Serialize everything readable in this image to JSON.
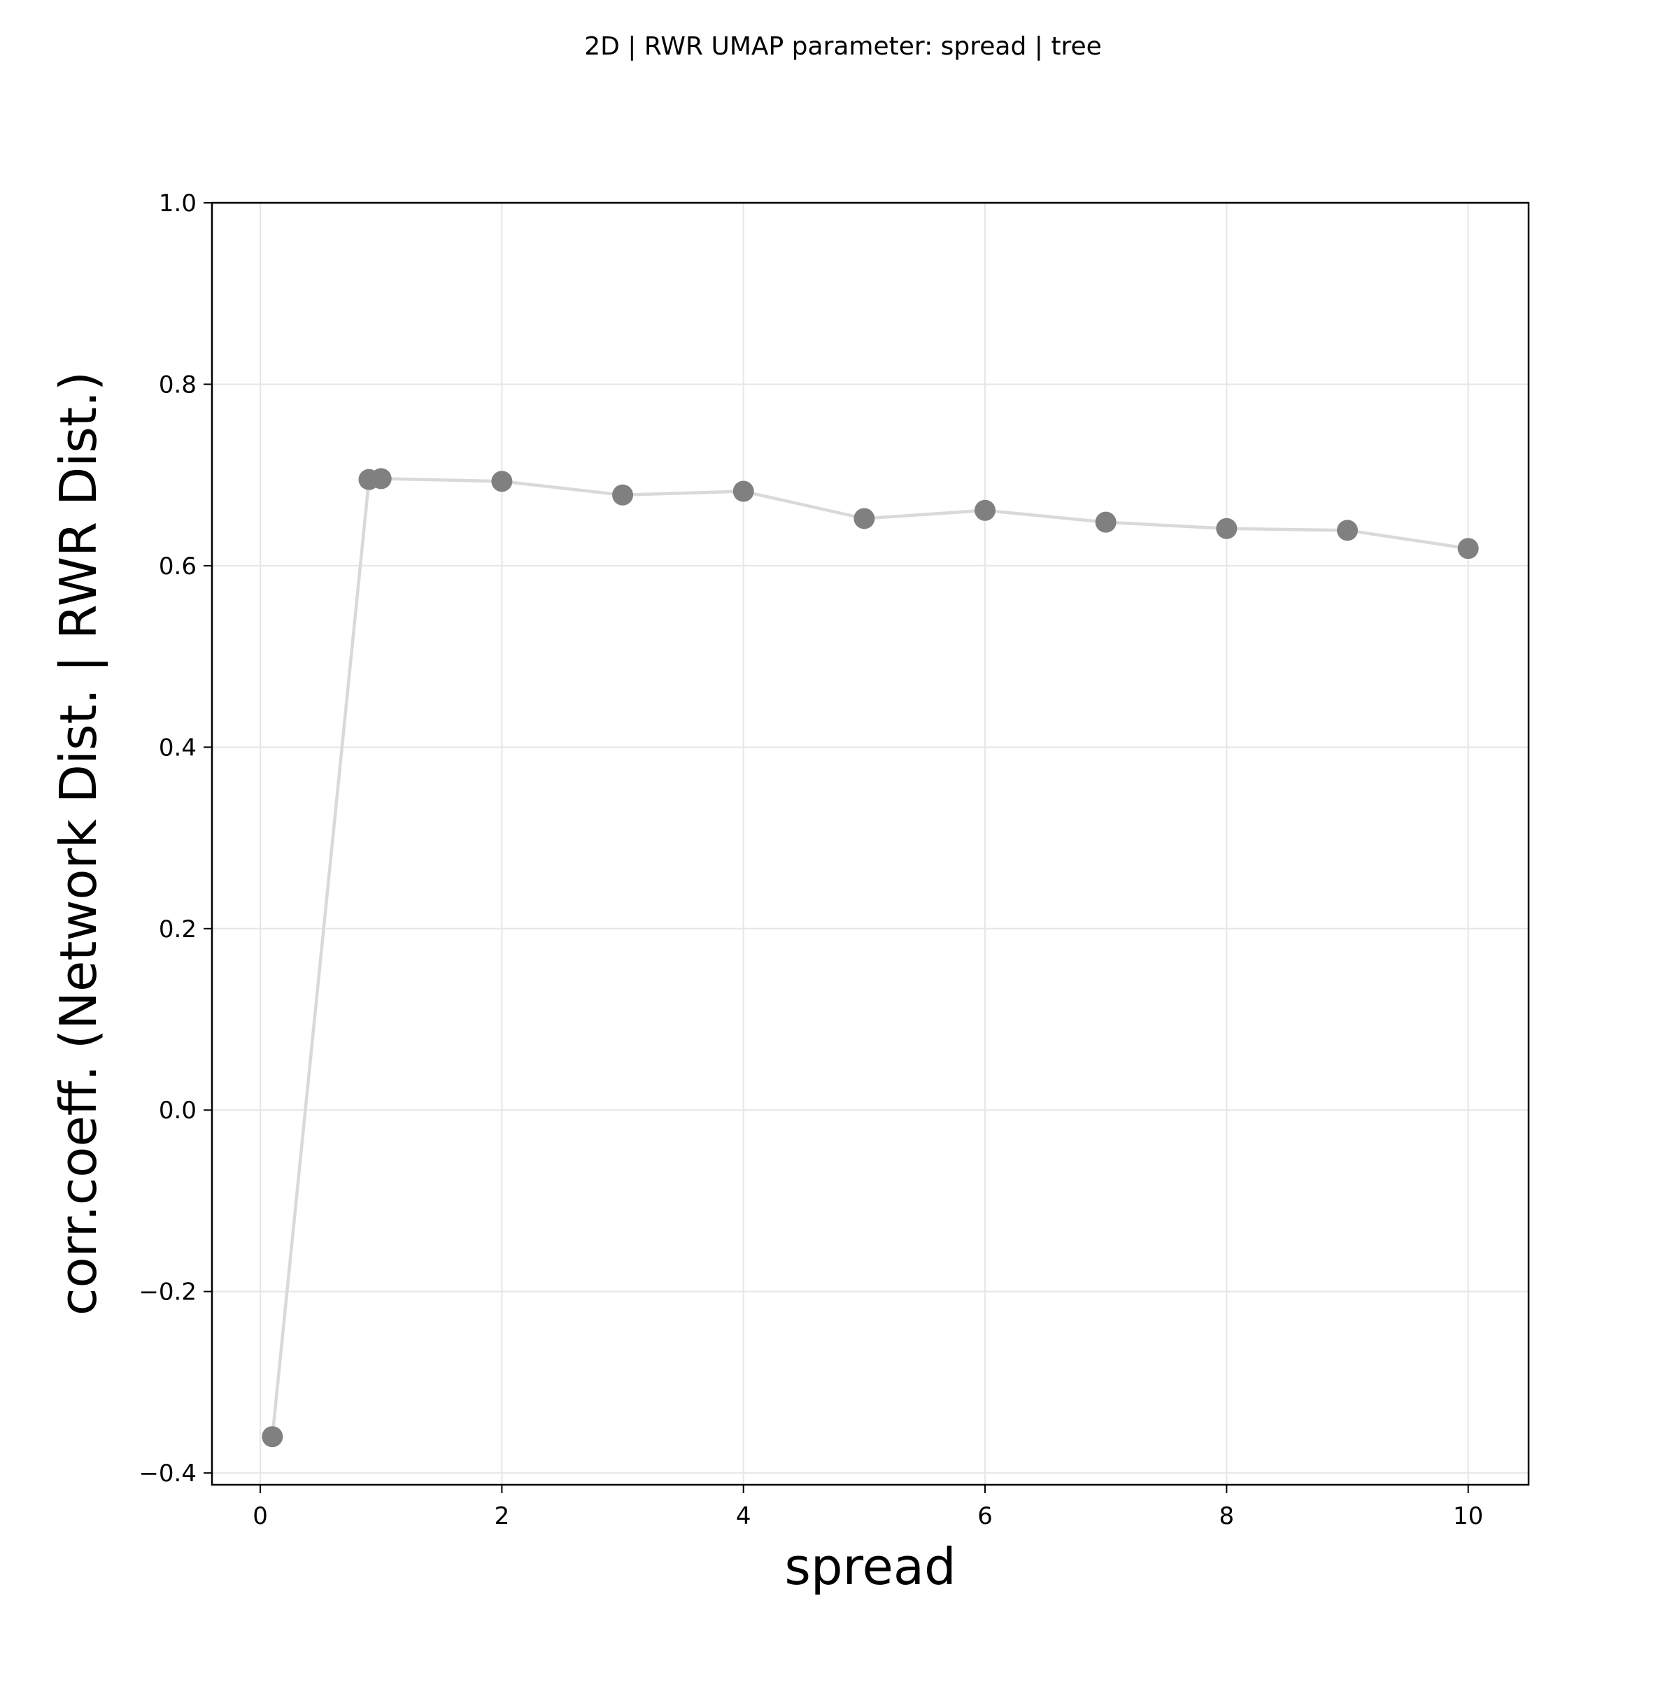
{
  "chart_data": {
    "type": "line",
    "title": "2D | RWR UMAP parameter: spread | tree",
    "xlabel": "spread",
    "ylabel": "corr.coeff. (Network Dist. | RWR Dist.)",
    "xlim": [
      -0.4,
      10.5
    ],
    "ylim": [
      -0.413,
      1.0
    ],
    "xticks": [
      0,
      2,
      4,
      6,
      8,
      10
    ],
    "xtick_labels": [
      "0",
      "2",
      "4",
      "6",
      "8",
      "10"
    ],
    "yticks": [
      -0.4,
      -0.2,
      0.0,
      0.2,
      0.4,
      0.6,
      0.8,
      1.0
    ],
    "ytick_labels": [
      "−0.4",
      "−0.2",
      "0.0",
      "0.2",
      "0.4",
      "0.6",
      "0.8",
      "1.0"
    ],
    "grid": true,
    "series": [
      {
        "x": [
          0.1,
          0.9,
          1.0,
          2.0,
          3.0,
          4.0,
          5.0,
          6.0,
          7.0,
          8.0,
          9.0,
          10.0
        ],
        "values": [
          -0.36,
          0.695,
          0.696,
          0.693,
          0.678,
          0.682,
          0.652,
          0.661,
          0.648,
          0.641,
          0.639,
          0.619
        ],
        "line_color": "#d9d9d9",
        "marker_color": "#808080"
      }
    ]
  }
}
